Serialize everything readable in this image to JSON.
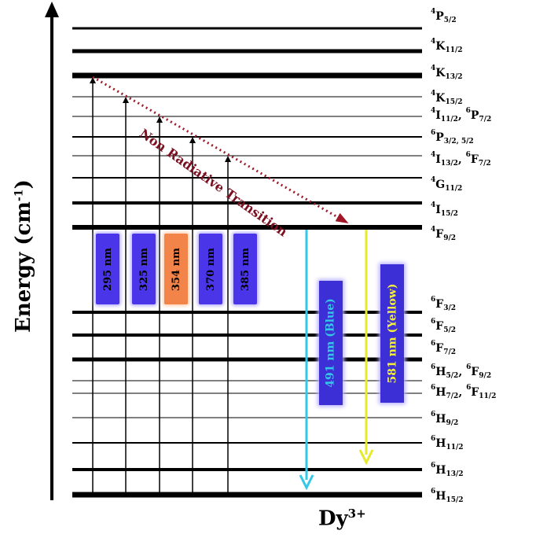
{
  "axis": {
    "title": "Energy (cm",
    "title_sup": "-1",
    "title_end": ")"
  },
  "ion": {
    "label": "Dy",
    "sup": "3+"
  },
  "levels": [
    {
      "pre": "4",
      "main": "P",
      "sub": "5/2"
    },
    {
      "pre": "4",
      "main": "K",
      "sub": "11/2"
    },
    {
      "pre": "4",
      "main": "K",
      "sub": "13/2"
    },
    {
      "pre": "4",
      "main": "K",
      "sub": "15/2"
    },
    {
      "pre": "4",
      "main": "I",
      "sub": "11/2",
      "pre2": "6",
      "main2": "P",
      "sub2": "7/2"
    },
    {
      "pre": "6",
      "main": "P",
      "sub": "3/2, 5/2"
    },
    {
      "pre": "4",
      "main": "I",
      "sub": "13/2",
      "pre2": "6",
      "main2": "F",
      "sub2": "7/2"
    },
    {
      "pre": "4",
      "main": "G",
      "sub": "11/2"
    },
    {
      "pre": "4",
      "main": "I",
      "sub": "15/2"
    },
    {
      "pre": "4",
      "main": "F",
      "sub": "9/2"
    },
    {
      "pre": "6",
      "main": "F",
      "sub": "3/2"
    },
    {
      "pre": "6",
      "main": "F",
      "sub": "5/2"
    },
    {
      "pre": "6",
      "main": "F",
      "sub": "7/2"
    },
    {
      "pre": "6",
      "main": "H",
      "sub": "5/2",
      "pre2": "6",
      "main2": "F",
      "sub2": "9/2"
    },
    {
      "pre": "6",
      "main": "H",
      "sub": "7/2",
      "pre2": "6",
      "main2": "F",
      "sub2": "11/2"
    },
    {
      "pre": "6",
      "main": "H",
      "sub": "9/2"
    },
    {
      "pre": "6",
      "main": "H",
      "sub": "11/2"
    },
    {
      "pre": "6",
      "main": "H",
      "sub": "13/2"
    },
    {
      "pre": "6",
      "main": "H",
      "sub": "15/2"
    }
  ],
  "excitations": [
    {
      "label": "295 nm",
      "color": "#4a36e8"
    },
    {
      "label": "325 nm",
      "color": "#4a36e8"
    },
    {
      "label": "354 nm",
      "color": "#f2844a"
    },
    {
      "label": "370 nm",
      "color": "#4a36e8"
    },
    {
      "label": "385 nm",
      "color": "#4a36e8"
    }
  ],
  "nonradiative": {
    "label": "Non Radiative Transition",
    "color": "#7a1020"
  },
  "emissions": [
    {
      "label": "491 nm (Blue)",
      "arrow_color": "#33c8e8",
      "text_color": "#33c8e8"
    },
    {
      "label": "581 nm (Yellow)",
      "arrow_color": "#e6ea2a",
      "text_color": "#f2f03a"
    }
  ]
}
